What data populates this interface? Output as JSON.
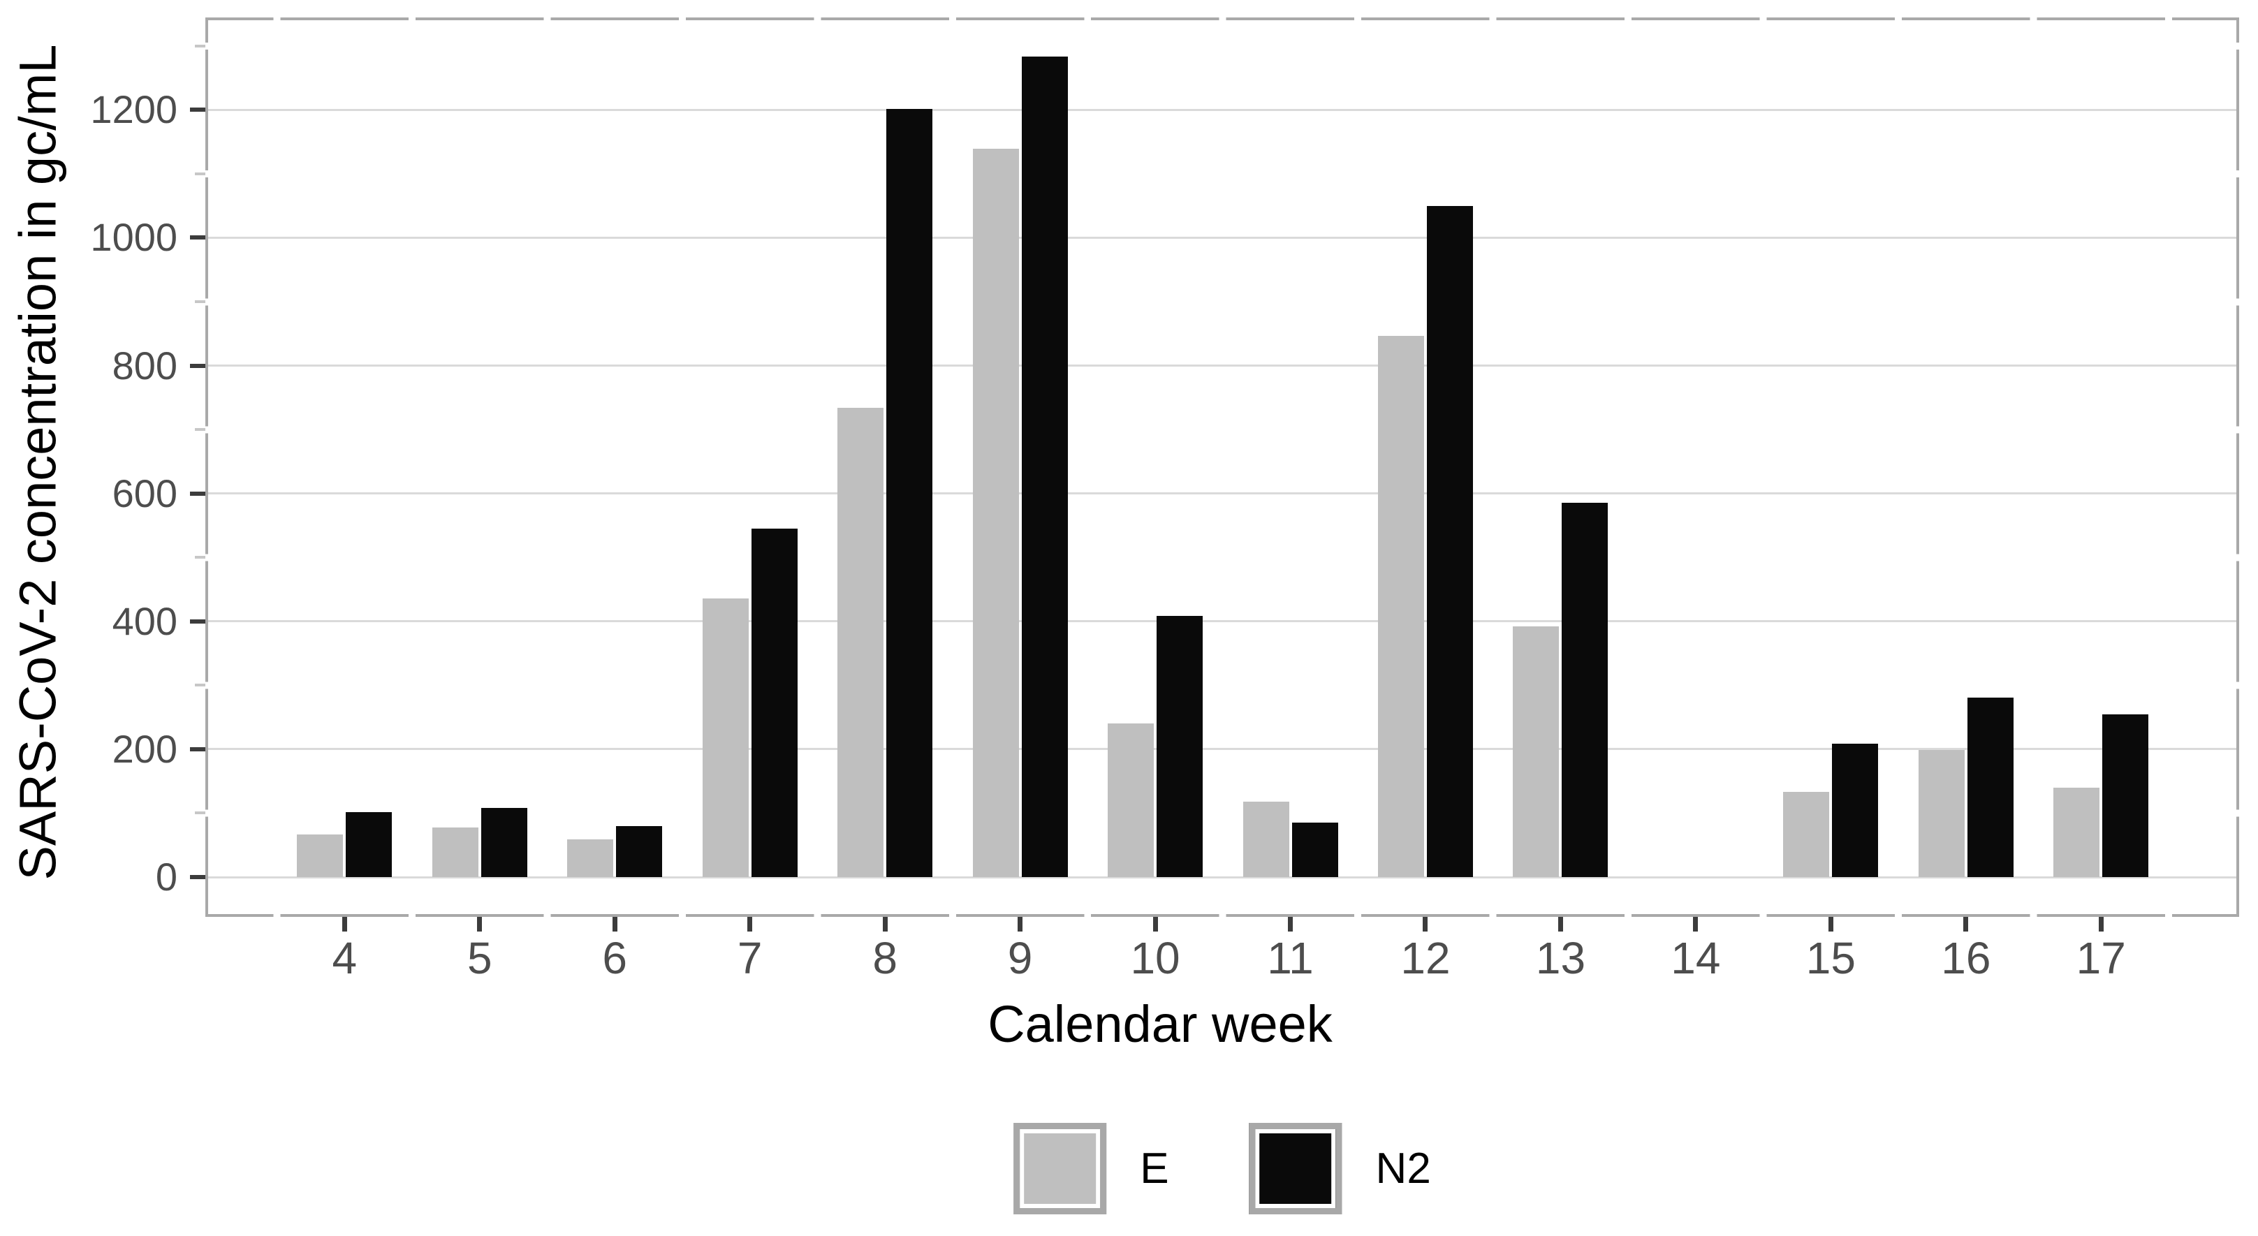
{
  "figure": {
    "y_axis_title": "SARS-CoV-2 concentration in gc/mL",
    "x_axis_title": "Calendar week"
  },
  "legend": {
    "entries": [
      {
        "label": "E",
        "color": "#bfbfbf"
      },
      {
        "label": "N2",
        "color": "#0a0a0a"
      }
    ]
  },
  "chart_data": {
    "type": "bar",
    "title": "",
    "xlabel": "Calendar week",
    "ylabel": "SARS-CoV-2 concentration in gc/mL",
    "categories": [
      4,
      5,
      6,
      7,
      8,
      9,
      10,
      11,
      12,
      13,
      14,
      15,
      16,
      17
    ],
    "series": [
      {
        "name": "E",
        "color": "#bfbfbf",
        "values": [
          67,
          78,
          59,
          436,
          734,
          1139,
          240,
          118,
          846,
          392,
          null,
          133,
          199,
          140
        ]
      },
      {
        "name": "N2",
        "color": "#0a0a0a",
        "values": [
          102,
          108,
          80,
          545,
          1201,
          1283,
          408,
          85,
          1050,
          585,
          null,
          209,
          281,
          254
        ]
      }
    ],
    "y_ticks": [
      0,
      200,
      400,
      600,
      800,
      1000,
      1200
    ],
    "y_minor_ticks": [
      100,
      300,
      500,
      700,
      900,
      1100,
      1300
    ],
    "ylim": [
      0,
      1345
    ],
    "grid": "horizontal-major",
    "legend_position": "bottom-center",
    "colors": {
      "grid_major": "#dadada",
      "panel_border": "#a9a9a9",
      "tick_major": "#3c3c3c",
      "tick_minor": "#c7c7c7",
      "tick_label": "#4d4d4d",
      "axis_title": "#000000"
    }
  }
}
